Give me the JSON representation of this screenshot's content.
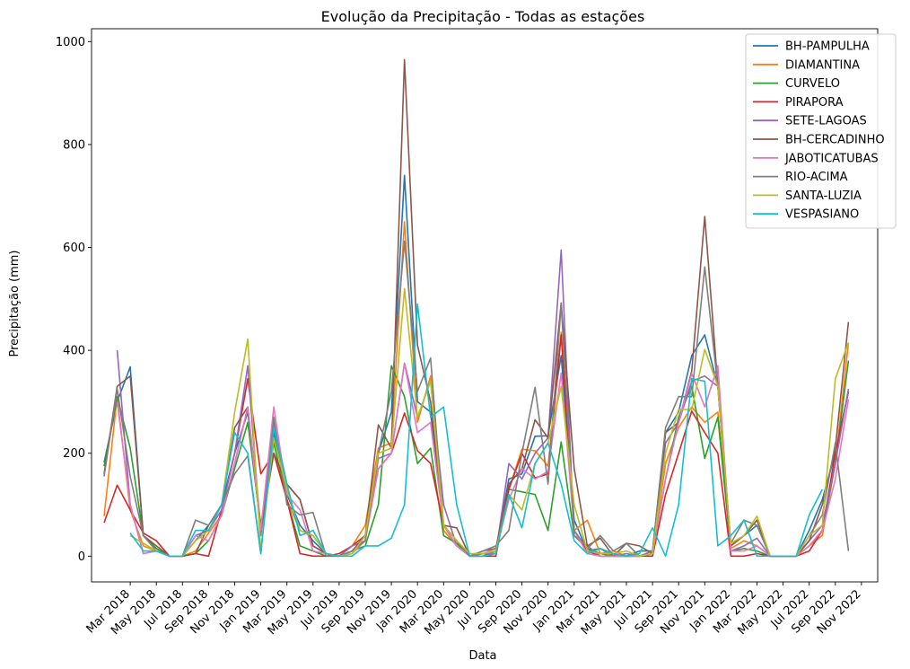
{
  "chart_data": {
    "type": "line",
    "title": "Evolução da Precipitação - Todas as estações",
    "xlabel": "Data",
    "ylabel": "Precipitação (mm)",
    "ylim": [
      -50,
      1025
    ],
    "y_ticks": [
      0,
      200,
      400,
      600,
      800,
      1000
    ],
    "x_start": "Jan 2018",
    "x_ticks": [
      "Mar 2018",
      "May 2018",
      "Jul 2018",
      "Sep 2018",
      "Nov 2018",
      "Jan 2019",
      "Mar 2019",
      "May 2019",
      "Jul 2019",
      "Sep 2019",
      "Nov 2019",
      "Jan 2020",
      "Mar 2020",
      "May 2020",
      "Jul 2020",
      "Sep 2020",
      "Nov 2020",
      "Jan 2021",
      "Mar 2021",
      "May 2021",
      "Jul 2021",
      "Sep 2021",
      "Nov 2021",
      "Jan 2022",
      "Mar 2022",
      "May 2022",
      "Jul 2022",
      "Sep 2022",
      "Nov 2022"
    ],
    "legend_position": "top-right",
    "grid": false,
    "series": [
      {
        "name": "BH-PAMPULHA",
        "color": "#1f77b4",
        "values": [
          182,
          300,
          368,
          40,
          15,
          0,
          0,
          30,
          60,
          100,
          200,
          280,
          50,
          240,
          120,
          60,
          30,
          5,
          0,
          10,
          30,
          200,
          280,
          740,
          300,
          280,
          60,
          20,
          0,
          5,
          10,
          150,
          160,
          233,
          234,
          390,
          70,
          10,
          15,
          0,
          0,
          10,
          10,
          240,
          280,
          390,
          430,
          330,
          20,
          40,
          60,
          0,
          0,
          0,
          50,
          110,
          200,
          320
        ]
      },
      {
        "name": "DIAMANTINA",
        "color": "#ff7f0e",
        "values": [
          78,
          310,
          90,
          20,
          10,
          0,
          0,
          10,
          45,
          80,
          180,
          290,
          60,
          200,
          110,
          50,
          40,
          5,
          0,
          20,
          60,
          210,
          220,
          650,
          260,
          350,
          50,
          20,
          0,
          5,
          10,
          130,
          208,
          205,
          175,
          435,
          50,
          70,
          5,
          10,
          0,
          0,
          5,
          180,
          250,
          290,
          260,
          280,
          15,
          30,
          20,
          0,
          0,
          0,
          20,
          40,
          180,
          415
        ]
      },
      {
        "name": "CURVELO",
        "color": "#2ca02c",
        "values": [
          175,
          310,
          210,
          40,
          15,
          0,
          0,
          5,
          30,
          80,
          170,
          260,
          60,
          220,
          110,
          20,
          10,
          0,
          0,
          10,
          20,
          100,
          370,
          310,
          180,
          210,
          40,
          25,
          0,
          0,
          10,
          130,
          125,
          120,
          50,
          222,
          40,
          15,
          5,
          0,
          0,
          0,
          5,
          150,
          270,
          330,
          190,
          270,
          10,
          15,
          10,
          0,
          0,
          0,
          20,
          50,
          180,
          380
        ]
      },
      {
        "name": "PIRAPORA",
        "color": "#d62728",
        "values": [
          65,
          138,
          90,
          45,
          30,
          0,
          0,
          5,
          0,
          90,
          200,
          345,
          160,
          200,
          110,
          5,
          0,
          0,
          5,
          20,
          40,
          170,
          200,
          278,
          205,
          180,
          60,
          30,
          0,
          0,
          0,
          130,
          200,
          152,
          160,
          430,
          50,
          10,
          0,
          0,
          0,
          0,
          0,
          120,
          200,
          282,
          240,
          200,
          0,
          0,
          5,
          0,
          0,
          0,
          10,
          50,
          200,
          320
        ]
      },
      {
        "name": "SETE-LAGOAS",
        "color": "#9467bd",
        "values": [
          null,
          400,
          100,
          5,
          10,
          0,
          0,
          40,
          50,
          90,
          200,
          370,
          40,
          260,
          140,
          110,
          20,
          5,
          0,
          20,
          30,
          190,
          200,
          375,
          270,
          340,
          100,
          20,
          0,
          5,
          5,
          180,
          150,
          200,
          230,
          595,
          40,
          20,
          0,
          0,
          5,
          0,
          5,
          220,
          260,
          340,
          350,
          330,
          10,
          20,
          35,
          0,
          0,
          0,
          30,
          60,
          180,
          325
        ]
      },
      {
        "name": "BH-CERCADINHO",
        "color": "#8c564b",
        "values": [
          160,
          330,
          350,
          40,
          20,
          0,
          0,
          5,
          60,
          100,
          250,
          290,
          50,
          200,
          140,
          110,
          20,
          5,
          0,
          10,
          40,
          255,
          210,
          965,
          410,
          300,
          60,
          55,
          0,
          10,
          15,
          140,
          170,
          265,
          230,
          492,
          170,
          20,
          35,
          0,
          25,
          20,
          5,
          240,
          260,
          360,
          660,
          330,
          20,
          40,
          70,
          0,
          0,
          0,
          30,
          100,
          210,
          455
        ]
      },
      {
        "name": "JABOTICATUBAS",
        "color": "#e377c2",
        "values": [
          null,
          300,
          100,
          5,
          10,
          0,
          0,
          40,
          30,
          80,
          180,
          290,
          50,
          290,
          120,
          90,
          10,
          5,
          0,
          5,
          30,
          170,
          200,
          375,
          240,
          260,
          60,
          20,
          0,
          10,
          10,
          110,
          170,
          150,
          165,
          356,
          50,
          5,
          0,
          0,
          0,
          0,
          5,
          150,
          260,
          355,
          290,
          370,
          10,
          10,
          20,
          0,
          0,
          0,
          20,
          50,
          150,
          305
        ]
      },
      {
        "name": "RIO-ACIMA",
        "color": "#7f7f7f",
        "values": [
          155,
          325,
          155,
          40,
          10,
          0,
          0,
          70,
          60,
          100,
          160,
          195,
          5,
          270,
          100,
          80,
          85,
          0,
          0,
          10,
          30,
          200,
          320,
          612,
          320,
          385,
          60,
          30,
          0,
          10,
          20,
          50,
          200,
          328,
          140,
          490,
          50,
          15,
          40,
          10,
          25,
          0,
          10,
          250,
          310,
          310,
          562,
          330,
          25,
          70,
          60,
          0,
          0,
          0,
          40,
          80,
          220,
          10
        ]
      },
      {
        "name": "SANTA-LUZIA",
        "color": "#bcbd22",
        "values": [
          null,
          null,
          40,
          25,
          10,
          0,
          0,
          30,
          50,
          100,
          280,
          422,
          10,
          230,
          130,
          50,
          40,
          5,
          0,
          5,
          40,
          200,
          210,
          520,
          270,
          340,
          60,
          30,
          5,
          5,
          10,
          120,
          90,
          180,
          220,
          330,
          100,
          10,
          5,
          5,
          10,
          0,
          5,
          200,
          285,
          285,
          402,
          330,
          25,
          40,
          78,
          0,
          0,
          0,
          40,
          60,
          345,
          415
        ]
      },
      {
        "name": "VESPASIANO",
        "color": "#17becf",
        "values": [
          null,
          null,
          45,
          10,
          10,
          0,
          0,
          50,
          50,
          100,
          240,
          200,
          5,
          250,
          140,
          40,
          50,
          5,
          0,
          0,
          20,
          20,
          35,
          100,
          490,
          270,
          290,
          100,
          0,
          0,
          5,
          120,
          55,
          180,
          220,
          140,
          30,
          5,
          15,
          5,
          0,
          5,
          55,
          0,
          100,
          345,
          340,
          20,
          40,
          70,
          0,
          0,
          0,
          0,
          80,
          130,
          null,
          null
        ]
      }
    ]
  }
}
